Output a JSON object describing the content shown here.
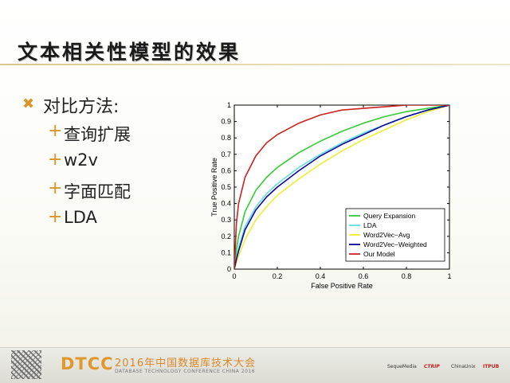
{
  "slide": {
    "title": "文本相关性模型的效果",
    "bullet_main": "对比方法:",
    "sub_bullets": [
      "查询扩展",
      "w2v",
      "字面匹配",
      "LDA"
    ]
  },
  "footer": {
    "logo": "DTCC",
    "title": "2016年中国数据库技术大会",
    "subtitle": "DATABASE TECHNOLOGY CONFERENCE CHINA 2016",
    "sponsors": [
      "SequeMedia",
      "CTRIP",
      "ChinaUnix",
      "ITPUB"
    ]
  },
  "chart_data": {
    "type": "line",
    "xlabel": "False Positive Rate",
    "ylabel": "True Positive Rate",
    "xlim": [
      0,
      1
    ],
    "ylim": [
      0,
      1
    ],
    "xticks": [
      "0",
      "0.2",
      "0.4",
      "0.6",
      "0.8",
      "1"
    ],
    "yticks": [
      "0",
      "0.1",
      "0.2",
      "0.3",
      "0.4",
      "0.5",
      "0.6",
      "0.7",
      "0.8",
      "0.9",
      "1"
    ],
    "grid": false,
    "legend_position": "bottom-right",
    "x": [
      0,
      0.01,
      0.02,
      0.05,
      0.1,
      0.15,
      0.2,
      0.3,
      0.4,
      0.5,
      0.6,
      0.7,
      0.8,
      0.9,
      1
    ],
    "series": [
      {
        "name": "Query Expansion",
        "color": "#33cc33",
        "values": [
          0,
          0.12,
          0.2,
          0.35,
          0.48,
          0.56,
          0.62,
          0.71,
          0.78,
          0.84,
          0.89,
          0.93,
          0.96,
          0.98,
          1
        ]
      },
      {
        "name": "LDA",
        "color": "#66dddd",
        "values": [
          0,
          0.07,
          0.13,
          0.26,
          0.38,
          0.46,
          0.52,
          0.62,
          0.7,
          0.77,
          0.83,
          0.88,
          0.93,
          0.97,
          1
        ]
      },
      {
        "name": "Word2Vec−Avg",
        "color": "#eeee33",
        "values": [
          0,
          0.04,
          0.08,
          0.18,
          0.3,
          0.38,
          0.45,
          0.55,
          0.64,
          0.72,
          0.79,
          0.85,
          0.91,
          0.96,
          1
        ]
      },
      {
        "name": "Word2Vec−Weighted",
        "color": "#0a0a99",
        "values": [
          0,
          0.06,
          0.11,
          0.24,
          0.36,
          0.44,
          0.5,
          0.6,
          0.69,
          0.76,
          0.82,
          0.88,
          0.93,
          0.97,
          1
        ]
      },
      {
        "name": "Our Model",
        "color": "#cc2222",
        "values": [
          0,
          0.28,
          0.4,
          0.56,
          0.69,
          0.77,
          0.82,
          0.89,
          0.94,
          0.97,
          0.98,
          0.99,
          1,
          1,
          1
        ]
      }
    ]
  }
}
